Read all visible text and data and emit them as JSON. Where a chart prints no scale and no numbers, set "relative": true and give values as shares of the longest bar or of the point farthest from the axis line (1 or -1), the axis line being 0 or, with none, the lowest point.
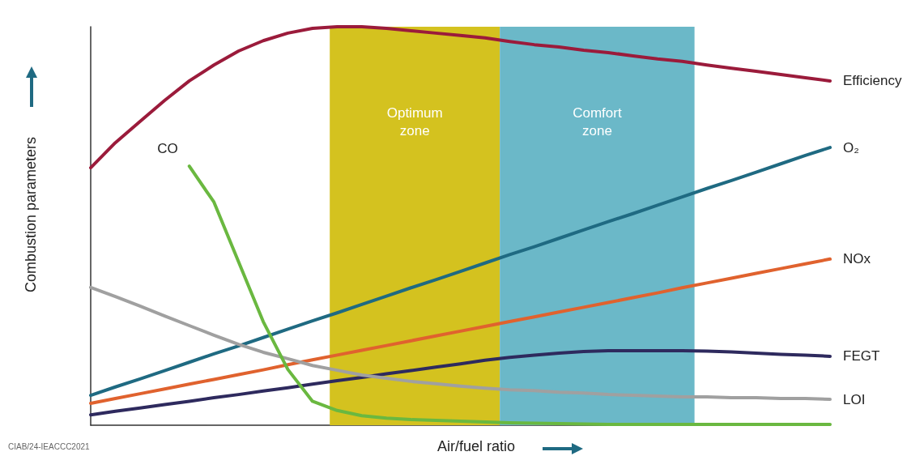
{
  "chart_data": {
    "type": "line",
    "relative": true,
    "xlabel": "Air/fuel ratio",
    "ylabel": "Combustion parameters",
    "categories": [
      null,
      null,
      null,
      null,
      null,
      null,
      null,
      null,
      null,
      null,
      null,
      null,
      null,
      null,
      null,
      null,
      null,
      null,
      null,
      null,
      null,
      null,
      null,
      null,
      null,
      null,
      null,
      null,
      null,
      null,
      null
    ],
    "grid": false,
    "legend": false,
    "marker": "none",
    "series": [
      {
        "name": "Efficiency",
        "color": "#9b1b3b",
        "values": [
          0.646,
          0.709,
          0.762,
          0.815,
          0.864,
          0.904,
          0.939,
          0.965,
          0.984,
          0.996,
          1.0,
          1.0,
          0.996,
          0.99,
          0.984,
          0.978,
          0.972,
          0.963,
          0.955,
          0.949,
          0.941,
          0.935,
          0.927,
          0.919,
          0.913,
          0.904,
          0.896,
          0.888,
          0.88,
          0.872,
          0.864
        ]
      },
      {
        "name": "O₂",
        "color": "#1f6a82",
        "values": [
          0.075,
          0.096,
          0.116,
          0.137,
          0.158,
          0.179,
          0.199,
          0.22,
          0.241,
          0.262,
          0.282,
          0.303,
          0.324,
          0.345,
          0.365,
          0.386,
          0.407,
          0.428,
          0.448,
          0.469,
          0.49,
          0.511,
          0.531,
          0.552,
          0.573,
          0.594,
          0.614,
          0.635,
          0.656,
          0.677,
          0.697
        ]
      },
      {
        "name": "NOx",
        "color": "#e0622e",
        "values": [
          0.055,
          0.067,
          0.079,
          0.091,
          0.103,
          0.115,
          0.127,
          0.139,
          0.152,
          0.164,
          0.176,
          0.188,
          0.2,
          0.212,
          0.224,
          0.236,
          0.248,
          0.26,
          0.272,
          0.284,
          0.296,
          0.308,
          0.32,
          0.332,
          0.345,
          0.357,
          0.369,
          0.381,
          0.393,
          0.405,
          0.417
        ]
      },
      {
        "name": "FEGT",
        "color": "#2e2a5e",
        "values": [
          0.026,
          0.035,
          0.043,
          0.052,
          0.06,
          0.069,
          0.077,
          0.086,
          0.094,
          0.103,
          0.112,
          0.12,
          0.129,
          0.137,
          0.146,
          0.154,
          0.163,
          0.17,
          0.176,
          0.181,
          0.185,
          0.187,
          0.187,
          0.187,
          0.187,
          0.186,
          0.184,
          0.181,
          0.178,
          0.176,
          0.173
        ]
      },
      {
        "name": "LOI",
        "color": "#a0a0a0",
        "values": [
          0.346,
          0.323,
          0.299,
          0.274,
          0.25,
          0.226,
          0.203,
          0.183,
          0.167,
          0.15,
          0.138,
          0.126,
          0.118,
          0.11,
          0.104,
          0.098,
          0.093,
          0.089,
          0.087,
          0.083,
          0.081,
          0.077,
          0.075,
          0.073,
          0.071,
          0.071,
          0.069,
          0.069,
          0.067,
          0.067,
          0.065
        ]
      },
      {
        "name": "CO",
        "color": "#6ab840",
        "values": [
          null,
          null,
          null,
          null,
          0.65,
          0.56,
          0.41,
          0.26,
          0.14,
          0.06,
          0.037,
          0.024,
          0.018,
          0.014,
          0.012,
          0.01,
          0.008,
          0.006,
          0.005,
          0.004,
          0.003,
          0.002,
          0.002,
          0.002,
          0.002,
          0.002,
          0.002,
          0.002,
          0.002,
          0.002,
          0.002
        ]
      }
    ],
    "annotations": [
      "Optimum\nzone",
      "Comfort\nzone",
      "CIAB/24-IEACCC2021"
    ]
  }
}
